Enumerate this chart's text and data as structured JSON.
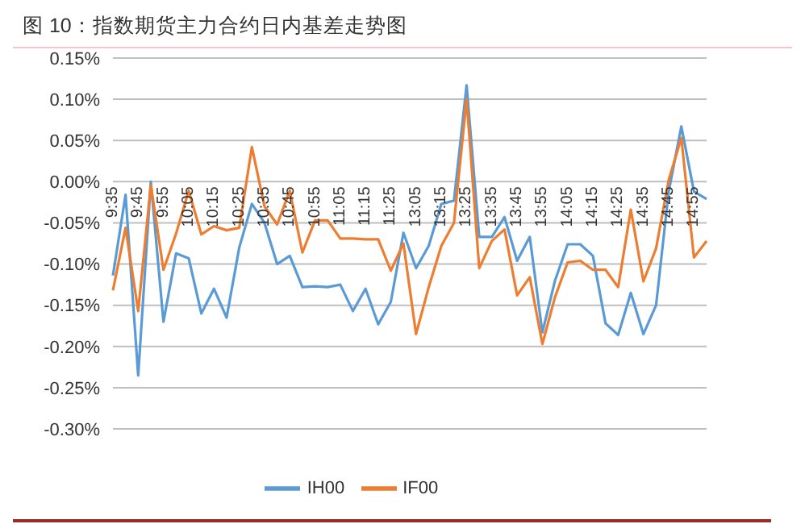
{
  "chart_data": {
    "type": "line",
    "title": "图 10：指数期货主力合约日内基差走势图",
    "categories": [
      "9:35",
      null,
      "9:45",
      null,
      "9:55",
      null,
      "10:05",
      null,
      "10:15",
      null,
      "10:25",
      null,
      "10:35",
      null,
      "10:45",
      null,
      "10:55",
      null,
      "11:05",
      null,
      "11:15",
      null,
      "11:25",
      null,
      "13:05",
      null,
      "13:15",
      null,
      "13:25",
      null,
      "13:35",
      null,
      "13:45",
      null,
      "13:55",
      null,
      "14:05",
      null,
      "14:15",
      null,
      "14:25",
      null,
      "14:35",
      null,
      "14:45",
      null,
      "14:55",
      null
    ],
    "series": [
      {
        "name": "IH00",
        "color": "#5b9bd5",
        "values": [
          -0.114,
          -0.016,
          -0.235,
          0.0,
          -0.17,
          -0.087,
          -0.093,
          -0.16,
          -0.13,
          -0.165,
          -0.08,
          -0.027,
          -0.05,
          -0.1,
          -0.09,
          -0.128,
          -0.127,
          -0.128,
          -0.125,
          -0.157,
          -0.13,
          -0.173,
          -0.146,
          -0.062,
          -0.105,
          -0.078,
          -0.027,
          -0.023,
          0.117,
          -0.067,
          -0.067,
          -0.043,
          -0.096,
          -0.067,
          -0.183,
          -0.12,
          -0.076,
          -0.076,
          -0.09,
          -0.172,
          -0.186,
          -0.135,
          -0.185,
          -0.15,
          -0.012,
          0.067,
          -0.012,
          -0.021
        ]
      },
      {
        "name": "IF00",
        "color": "#ed7d31",
        "values": [
          -0.132,
          -0.056,
          -0.157,
          -0.004,
          -0.107,
          -0.063,
          -0.011,
          -0.064,
          -0.054,
          -0.059,
          -0.056,
          0.042,
          -0.03,
          -0.052,
          -0.011,
          -0.086,
          -0.047,
          -0.047,
          -0.069,
          -0.069,
          -0.07,
          -0.07,
          -0.108,
          -0.075,
          -0.185,
          -0.128,
          -0.078,
          -0.05,
          0.1,
          -0.105,
          -0.072,
          -0.058,
          -0.138,
          -0.116,
          -0.197,
          -0.14,
          -0.098,
          -0.096,
          -0.107,
          -0.107,
          -0.128,
          -0.034,
          -0.121,
          -0.081,
          0.002,
          0.053,
          -0.092,
          -0.072
        ]
      }
    ],
    "ylim": [
      -0.3,
      0.15
    ],
    "yticks": [
      {
        "value": 0.15,
        "label": "0.15%"
      },
      {
        "value": 0.1,
        "label": "0.10%"
      },
      {
        "value": 0.05,
        "label": "0.05%"
      },
      {
        "value": 0,
        "label": "0.00%"
      },
      {
        "value": -0.05,
        "label": "-0.05%"
      },
      {
        "value": -0.1,
        "label": "-0.10%"
      },
      {
        "value": -0.15,
        "label": "-0.15%"
      },
      {
        "value": -0.2,
        "label": "-0.20%"
      },
      {
        "value": -0.25,
        "label": "-0.25%"
      },
      {
        "value": -0.3,
        "label": "-0.30%"
      }
    ],
    "grid": "y",
    "legend": "bottom"
  }
}
